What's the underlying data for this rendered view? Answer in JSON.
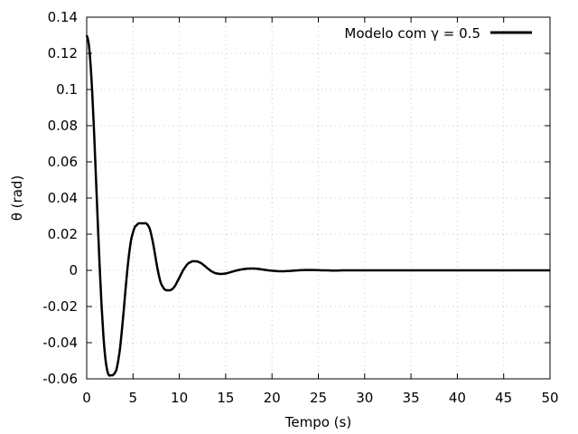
{
  "chart_data": {
    "type": "line",
    "title": "",
    "xlabel": "Tempo (s)",
    "ylabel": "θ (rad)",
    "xlim": [
      0,
      50
    ],
    "ylim": [
      -0.06,
      0.14
    ],
    "xticks": [
      0,
      5,
      10,
      15,
      20,
      25,
      30,
      35,
      40,
      45,
      50
    ],
    "xtick_labels": [
      "0",
      "5",
      "10",
      "15",
      "20",
      "25",
      "30",
      "35",
      "40",
      "45",
      "50"
    ],
    "yticks": [
      -0.06,
      -0.04,
      -0.02,
      0,
      0.02,
      0.04,
      0.06,
      0.08,
      0.1,
      0.12,
      0.14
    ],
    "ytick_labels": [
      "-0.06",
      "-0.04",
      "-0.02",
      "0",
      "0.02",
      "0.04",
      "0.06",
      "0.08",
      "0.1",
      "0.12",
      "0.14"
    ],
    "grid": true,
    "legend_position": "top-right",
    "series": [
      {
        "name": "Modelo com γ = 0.5",
        "color": "#000000",
        "x": [
          0,
          0.2,
          0.4,
          0.6,
          0.8,
          1.0,
          1.2,
          1.4,
          1.6,
          1.8,
          2.0,
          2.2,
          2.4,
          2.6,
          2.8,
          3.0,
          3.2,
          3.4,
          3.6,
          3.8,
          4.0,
          4.2,
          4.4,
          4.6,
          4.8,
          5.0,
          5.2,
          5.4,
          5.6,
          5.8,
          6.0,
          6.2,
          6.4,
          6.6,
          6.8,
          7.0,
          7.2,
          7.4,
          7.6,
          7.8,
          8.0,
          8.2,
          8.4,
          8.6,
          8.8,
          9.0,
          9.2,
          9.4,
          9.6,
          9.8,
          10.0,
          10.2,
          10.4,
          10.6,
          10.8,
          11.0,
          11.2,
          11.4,
          11.6,
          11.8,
          12.0,
          12.2,
          12.4,
          12.6,
          12.8,
          13.0,
          13.2,
          13.4,
          13.6,
          13.8,
          14.0,
          14.4,
          14.8,
          15.2,
          15.6,
          16.0,
          16.4,
          16.8,
          17.2,
          17.6,
          18.0,
          18.4,
          18.8,
          19.2,
          19.6,
          20.0,
          20.4,
          20.8,
          21.2,
          21.6,
          22.0,
          22.4,
          22.8,
          23.2,
          23.6,
          24.0,
          24.5,
          25.0,
          25.5,
          26.0,
          26.5,
          27.0,
          27.5,
          28.0,
          28.5,
          29.0,
          30.0,
          32.0,
          35.0,
          40.0,
          45.0,
          50.0
        ],
        "y": [
          0.13,
          0.126,
          0.115,
          0.098,
          0.076,
          0.051,
          0.026,
          0.002,
          -0.019,
          -0.036,
          -0.048,
          -0.055,
          -0.058,
          -0.058,
          -0.058,
          -0.057,
          -0.055,
          -0.05,
          -0.043,
          -0.033,
          -0.022,
          -0.01,
          0.001,
          0.01,
          0.017,
          0.021,
          0.024,
          0.025,
          0.026,
          0.026,
          0.026,
          0.026,
          0.026,
          0.025,
          0.023,
          0.019,
          0.014,
          0.008,
          0.002,
          -0.003,
          -0.007,
          -0.009,
          -0.0105,
          -0.011,
          -0.011,
          -0.011,
          -0.0105,
          -0.0095,
          -0.008,
          -0.006,
          -0.004,
          -0.002,
          0.0,
          0.0015,
          0.003,
          0.004,
          0.0045,
          0.005,
          0.005,
          0.005,
          0.0048,
          0.0044,
          0.0038,
          0.003,
          0.0022,
          0.0013,
          0.0005,
          -0.0003,
          -0.0009,
          -0.0014,
          -0.0017,
          -0.002,
          -0.0019,
          -0.0015,
          -0.0009,
          -0.0003,
          0.0002,
          0.0006,
          0.0009,
          0.001,
          0.001,
          0.0009,
          0.0006,
          0.0003,
          0.0,
          -0.0002,
          -0.0004,
          -0.0005,
          -0.0005,
          -0.0004,
          -0.0003,
          -0.0001,
          0.0,
          0.0001,
          0.0002,
          0.0002,
          0.0002,
          0.0001,
          0.0,
          0.0,
          -0.0001,
          -0.0001,
          0.0,
          0.0,
          0.0,
          0.0,
          0.0,
          0.0,
          0.0,
          0.0,
          0.0,
          0.0
        ]
      }
    ]
  }
}
